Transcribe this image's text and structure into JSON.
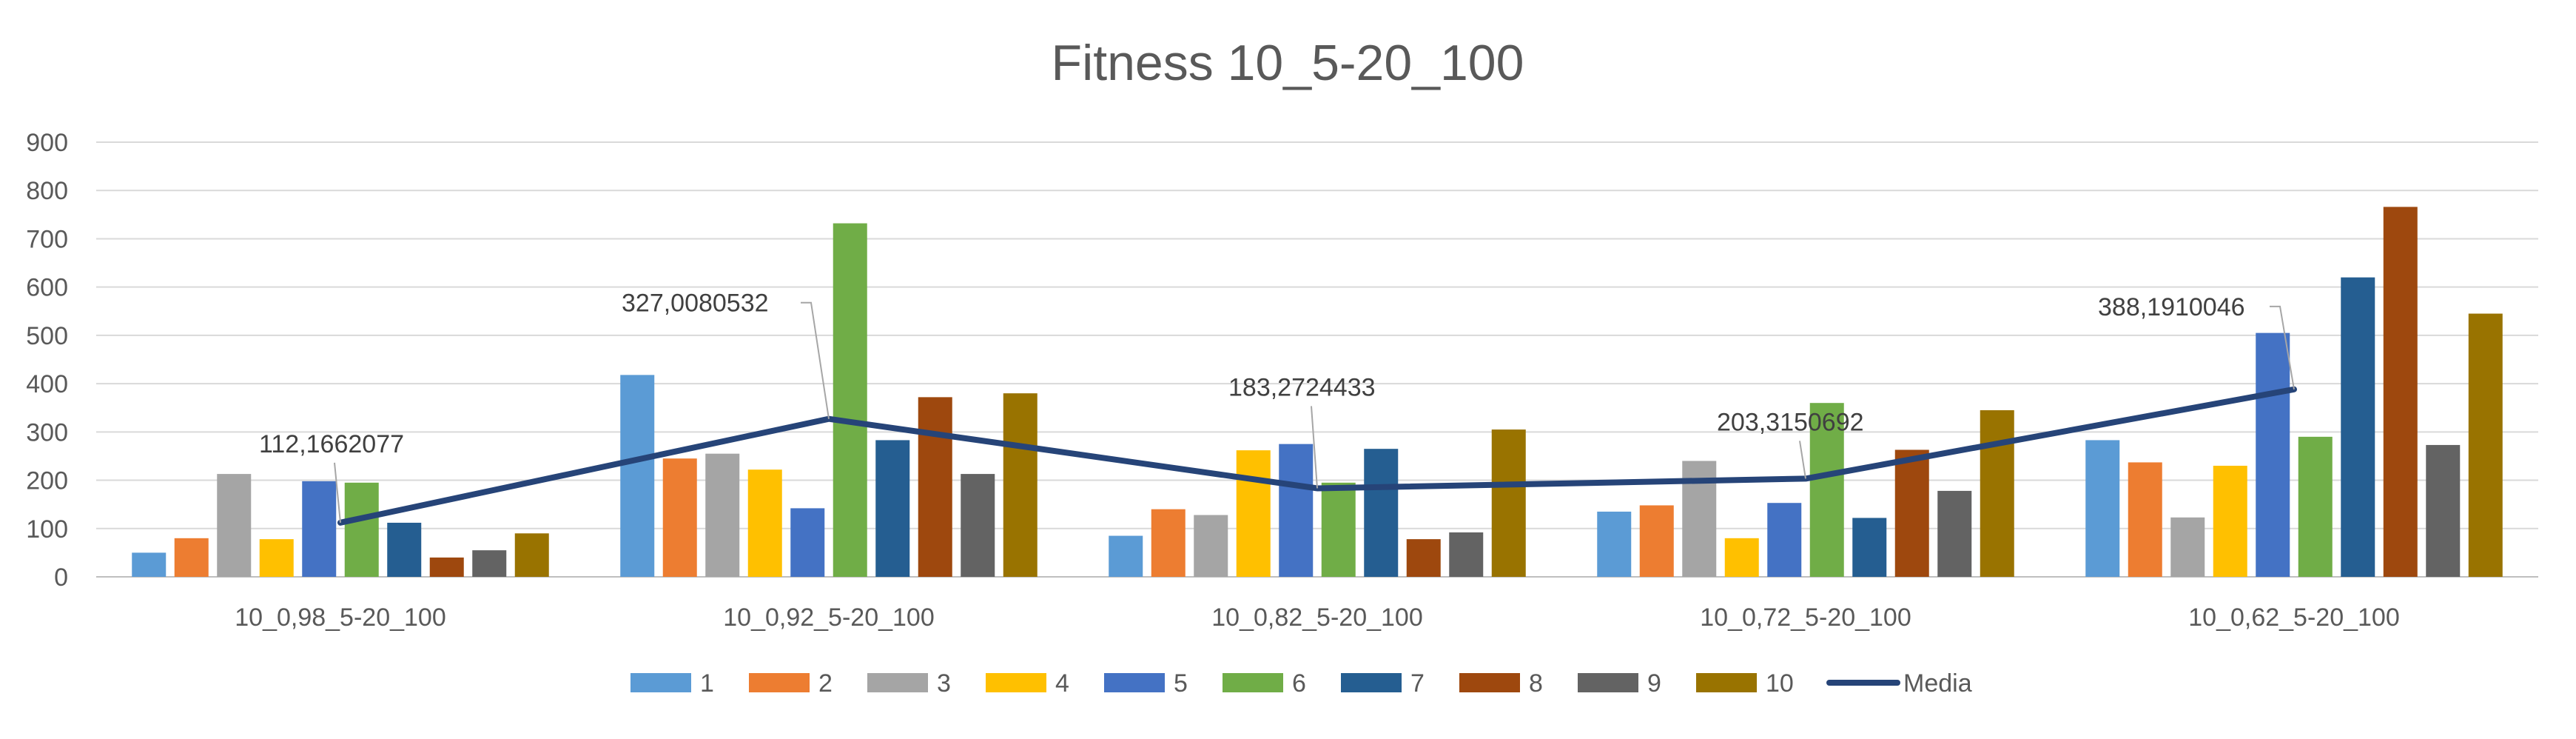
{
  "chart_data": {
    "type": "bar",
    "title": "Fitness 10_5-20_100",
    "categories": [
      "10_0,98_5-20_100",
      "10_0,92_5-20_100",
      "10_0,82_5-20_100",
      "10_0,72_5-20_100",
      "10_0,62_5-20_100"
    ],
    "ylim": [
      0,
      900
    ],
    "yticks": [
      0,
      100,
      200,
      300,
      400,
      500,
      600,
      700,
      800,
      900
    ],
    "grid": true,
    "legend_position": "bottom",
    "series": [
      {
        "name": "1",
        "color": "#5B9BD5",
        "values": [
          50,
          418,
          85,
          135,
          283
        ]
      },
      {
        "name": "2",
        "color": "#ED7D31",
        "values": [
          80,
          245,
          140,
          148,
          237
        ]
      },
      {
        "name": "3",
        "color": "#A5A5A5",
        "values": [
          213,
          255,
          128,
          240,
          123
        ]
      },
      {
        "name": "4",
        "color": "#FFC000",
        "values": [
          78,
          222,
          262,
          80,
          230
        ]
      },
      {
        "name": "5",
        "color": "#4472C4",
        "values": [
          198,
          142,
          275,
          153,
          505
        ]
      },
      {
        "name": "6",
        "color": "#70AD47",
        "values": [
          195,
          732,
          195,
          360,
          290
        ]
      },
      {
        "name": "7",
        "color": "#255E91",
        "values": [
          112,
          283,
          265,
          122,
          620
        ]
      },
      {
        "name": "8",
        "color": "#9E480E",
        "values": [
          40,
          372,
          78,
          263,
          766
        ]
      },
      {
        "name": "9",
        "color": "#636363",
        "values": [
          55,
          213,
          92,
          178,
          273
        ]
      },
      {
        "name": "10",
        "color": "#997300",
        "values": [
          90,
          380,
          305,
          345,
          545
        ]
      }
    ],
    "line_series": {
      "name": "Media",
      "color": "#264478",
      "values": [
        112.1662077,
        327.0080532,
        183.2724433,
        203.3150692,
        388.1910046
      ],
      "labels": [
        "112,1662077",
        "327,0080532",
        "183,2724433",
        "203,3150692",
        "388,1910046"
      ]
    }
  }
}
